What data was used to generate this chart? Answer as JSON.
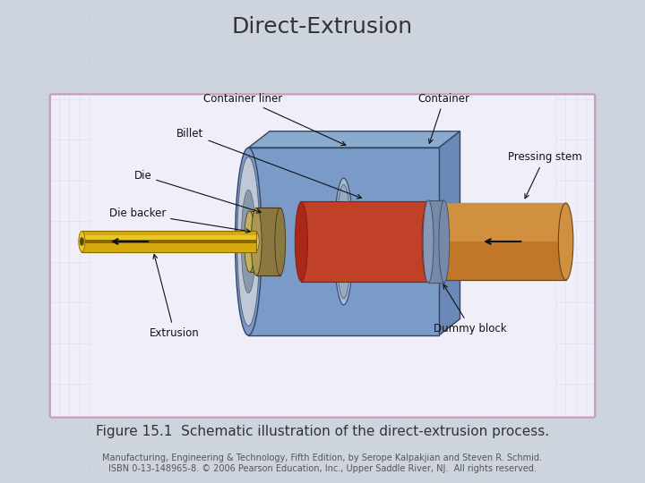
{
  "title": "Direct-Extrusion",
  "title_fontsize": 18,
  "title_color": "#333333",
  "caption": "Figure 15.1  Schematic illustration of the direct-extrusion process.",
  "caption_fontsize": 11,
  "footer_line1": "Manufacturing, Engineering & Technology, Fifth Edition, by Serope Kalpakjian and Steven R. Schmid.",
  "footer_line2": "ISBN 0-13-148965-8. © 2006 Pearson Education, Inc., Upper Saddle River, NJ.  All rights reserved.",
  "footer_fontsize": 7,
  "bg_color": "#cdd4de",
  "panel_bg": "#f0eef8",
  "panel_border": "#c899bb",
  "col_container_top": "#6888b0",
  "col_container_side": "#4a6a95",
  "col_container_front": "#7a9ac5",
  "col_liner": "#8899b8",
  "col_billet_top": "#c84030",
  "col_billet_side": "#a02818",
  "col_die": "#8a7840",
  "col_die_backer": "#a09050",
  "col_stem": "#c07828",
  "col_stem_side": "#a06020",
  "col_extrusion": "#d4aa10",
  "col_extrusion_side": "#b89000",
  "col_dummy": "#7888a8"
}
